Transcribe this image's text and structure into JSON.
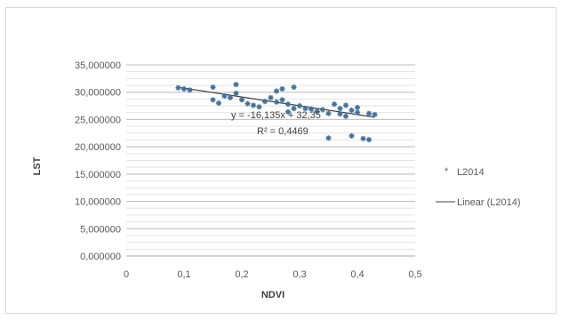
{
  "chart_data": {
    "type": "scatter",
    "xlabel": "NDVI",
    "ylabel": "LST",
    "xlim": [
      0,
      0.5
    ],
    "ylim": [
      0,
      35
    ],
    "x_ticks": [
      "0",
      "0,1",
      "0,2",
      "0,3",
      "0,4",
      "0,5"
    ],
    "y_ticks": [
      "0,000000",
      "5,000000",
      "10,000000",
      "15,000000",
      "20,000000",
      "25,000000",
      "30,000000",
      "35,000000"
    ],
    "grid": "horizontal",
    "legend_position": "right",
    "series": [
      {
        "name": "L2014",
        "color": "#41719c",
        "points": [
          [
            0.09,
            30.8
          ],
          [
            0.1,
            30.6
          ],
          [
            0.11,
            30.4
          ],
          [
            0.15,
            30.9
          ],
          [
            0.15,
            28.6
          ],
          [
            0.16,
            28.0
          ],
          [
            0.17,
            29.3
          ],
          [
            0.18,
            29.0
          ],
          [
            0.19,
            31.4
          ],
          [
            0.19,
            29.8
          ],
          [
            0.2,
            28.6
          ],
          [
            0.21,
            27.9
          ],
          [
            0.22,
            27.6
          ],
          [
            0.23,
            27.3
          ],
          [
            0.24,
            28.3
          ],
          [
            0.25,
            29.0
          ],
          [
            0.26,
            28.2
          ],
          [
            0.26,
            30.2
          ],
          [
            0.27,
            30.6
          ],
          [
            0.27,
            28.6
          ],
          [
            0.28,
            27.8
          ],
          [
            0.28,
            26.4
          ],
          [
            0.29,
            30.9
          ],
          [
            0.29,
            27.0
          ],
          [
            0.3,
            27.5
          ],
          [
            0.31,
            27.0
          ],
          [
            0.32,
            26.9
          ],
          [
            0.33,
            26.5
          ],
          [
            0.34,
            26.8
          ],
          [
            0.35,
            26.1
          ],
          [
            0.35,
            21.6
          ],
          [
            0.36,
            27.8
          ],
          [
            0.37,
            27.0
          ],
          [
            0.37,
            26.0
          ],
          [
            0.38,
            27.6
          ],
          [
            0.38,
            25.6
          ],
          [
            0.39,
            26.7
          ],
          [
            0.39,
            22.0
          ],
          [
            0.4,
            27.2
          ],
          [
            0.4,
            26.3
          ],
          [
            0.41,
            21.5
          ],
          [
            0.42,
            26.1
          ],
          [
            0.42,
            21.3
          ],
          [
            0.43,
            25.9
          ]
        ]
      }
    ],
    "trendline": {
      "name": "Linear (L2014)",
      "slope": -16.135,
      "intercept": 32.35,
      "equation": "y = -16,135x + 32,35",
      "r2_label": "R² = 0,4469"
    }
  }
}
